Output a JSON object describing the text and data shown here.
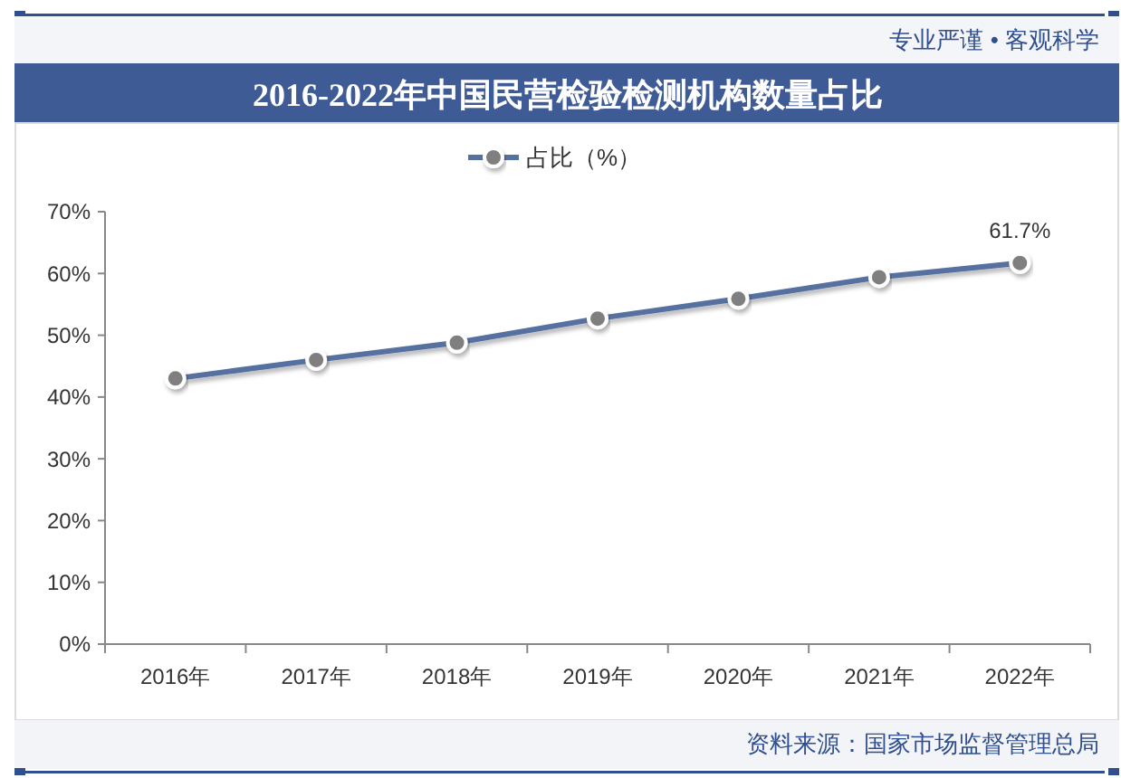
{
  "chart_data": {
    "type": "line",
    "title": "2016-2022年中国民营检验检测机构数量占比",
    "annotations": [
      "专业严谨 • 客观科学",
      "资料来源：国家市场监督管理总局"
    ],
    "categories": [
      "2016年",
      "2017年",
      "2018年",
      "2019年",
      "2020年",
      "2021年",
      "2022年"
    ],
    "series": [
      {
        "name": "占比（%）",
        "color": "#56709f",
        "values": [
          43.0,
          46.0,
          48.8,
          52.7,
          55.9,
          59.4,
          61.7
        ],
        "value_labels": [
          null,
          null,
          null,
          null,
          null,
          null,
          "61.7%"
        ]
      }
    ],
    "ylim": [
      0,
      70
    ],
    "yticks": [
      {
        "value": 0,
        "label": "0%"
      },
      {
        "value": 10,
        "label": "10%"
      },
      {
        "value": 20,
        "label": "20%"
      },
      {
        "value": 30,
        "label": "30%"
      },
      {
        "value": 40,
        "label": "40%"
      },
      {
        "value": 50,
        "label": "50%"
      },
      {
        "value": 60,
        "label": "60%"
      },
      {
        "value": 70,
        "label": "70%"
      }
    ],
    "legend": "top",
    "marker": "circle",
    "line_style": "solid",
    "grid": false
  }
}
